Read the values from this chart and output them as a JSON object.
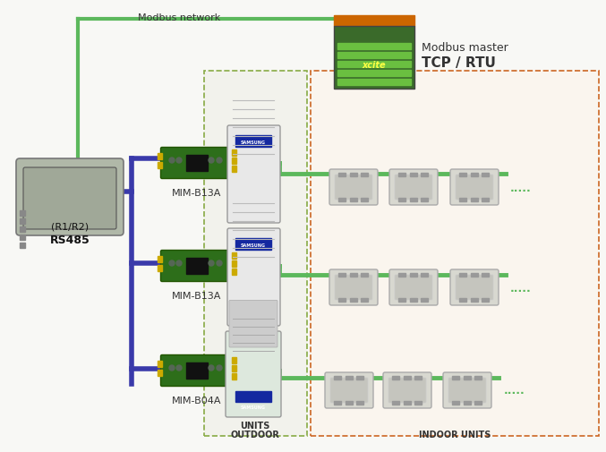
{
  "bg_color": "#f8f8f5",
  "modbus_master_label_1": "Modbus master",
  "modbus_master_label_2": "TCP / RTU",
  "modbus_network_label": "Modbus network",
  "rs485_label_1": "RS485",
  "rs485_label_2": "(R1/R2)",
  "mim_labels": [
    "MIM-B13A",
    "MIM-B13A",
    "MIM-B04A"
  ],
  "outdoor_label_1": "OUTDOOR",
  "outdoor_label_2": "UNITS",
  "indoor_label": "INDOOR UNITS",
  "green_color": "#5cb85c",
  "green_dark": "#3a8a3a",
  "blue_color": "#3a3aaa",
  "text_color": "#333333",
  "outdoor_edge": "#88aa44",
  "indoor_edge": "#cc6622",
  "rs485_fill": "#b0b8a8",
  "pcb_fill": "#2d6e1a",
  "pcb_edge": "#225500",
  "outdoor_fill": "#e8e8e8",
  "indoor_fill": "#d8d8d0"
}
